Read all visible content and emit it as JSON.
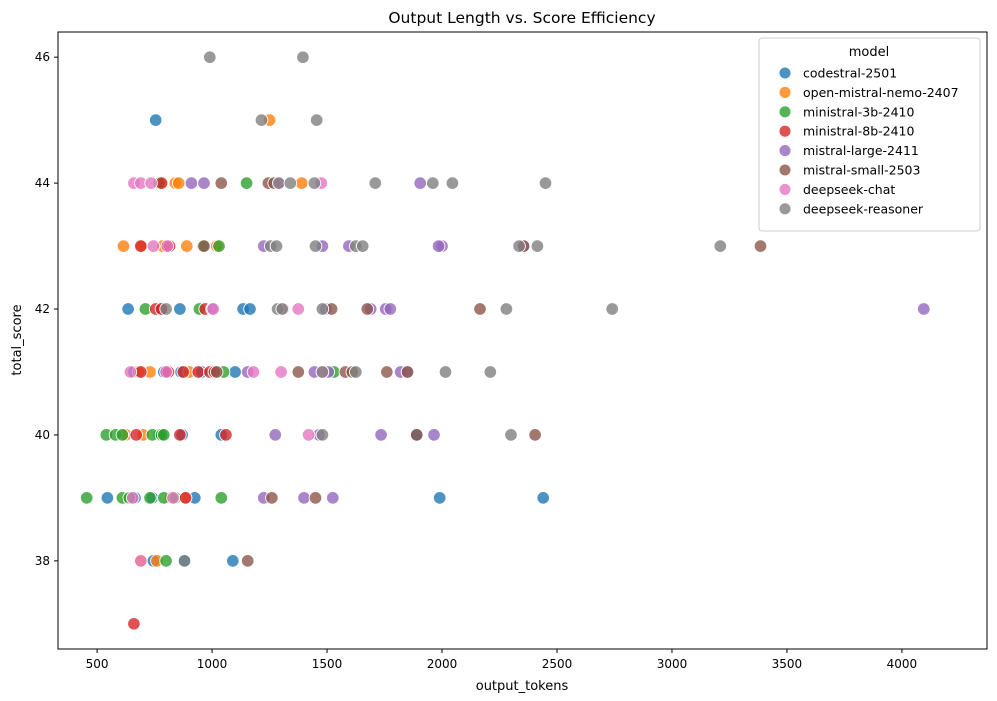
{
  "chart_data": {
    "type": "scatter",
    "title": "Output Length vs. Score Efficiency",
    "xlabel": "output_tokens",
    "ylabel": "total_score",
    "xlim": [
      330,
      4370
    ],
    "ylim": [
      36.6,
      46.4
    ],
    "x_ticks": [
      500,
      1000,
      1500,
      2000,
      2500,
      3000,
      3500,
      4000
    ],
    "y_ticks": [
      38,
      40,
      42,
      44,
      46
    ],
    "grid": false,
    "legend_title": "model",
    "legend_position": "top-right",
    "series": [
      {
        "name": "codestral-2501",
        "color": "#1f77b4",
        "points": [
          [
            755,
            45
          ],
          [
            635,
            42
          ],
          [
            1135,
            42
          ],
          [
            1165,
            42
          ],
          [
            780,
            42
          ],
          [
            860,
            42
          ],
          [
            660,
            41
          ],
          [
            955,
            41
          ],
          [
            1100,
            41
          ],
          [
            790,
            41
          ],
          [
            865,
            41
          ],
          [
            770,
            40
          ],
          [
            870,
            40
          ],
          [
            1040,
            40
          ],
          [
            1890,
            40
          ],
          [
            545,
            39
          ],
          [
            665,
            39
          ],
          [
            740,
            39
          ],
          [
            925,
            39
          ],
          [
            1990,
            39
          ],
          [
            2440,
            39
          ],
          [
            745,
            38
          ],
          [
            880,
            38
          ],
          [
            1090,
            38
          ]
        ]
      },
      {
        "name": "open-mistral-nemo-2407",
        "color": "#ff7f0e",
        "points": [
          [
            1250,
            45
          ],
          [
            780,
            44
          ],
          [
            840,
            44
          ],
          [
            855,
            44
          ],
          [
            1390,
            44
          ],
          [
            615,
            43
          ],
          [
            695,
            43
          ],
          [
            785,
            43
          ],
          [
            890,
            43
          ],
          [
            1020,
            43
          ],
          [
            730,
            41
          ],
          [
            900,
            41
          ],
          [
            680,
            41
          ],
          [
            625,
            40
          ],
          [
            700,
            40
          ],
          [
            820,
            39
          ],
          [
            880,
            39
          ],
          [
            690,
            38
          ],
          [
            760,
            38
          ]
        ]
      },
      {
        "name": "ministral-3b-2410",
        "color": "#2ca02c",
        "points": [
          [
            770,
            44
          ],
          [
            1150,
            44
          ],
          [
            960,
            43
          ],
          [
            1030,
            43
          ],
          [
            710,
            42
          ],
          [
            945,
            42
          ],
          [
            540,
            40
          ],
          [
            580,
            40
          ],
          [
            610,
            40
          ],
          [
            740,
            40
          ],
          [
            780,
            40
          ],
          [
            790,
            40
          ],
          [
            1050,
            41
          ],
          [
            1530,
            41
          ],
          [
            455,
            39
          ],
          [
            610,
            39
          ],
          [
            640,
            39
          ],
          [
            730,
            39
          ],
          [
            790,
            39
          ],
          [
            840,
            39
          ],
          [
            1040,
            39
          ],
          [
            800,
            38
          ]
        ]
      },
      {
        "name": "ministral-8b-2410",
        "color": "#d62728",
        "points": [
          [
            780,
            44
          ],
          [
            690,
            43
          ],
          [
            815,
            43
          ],
          [
            755,
            42
          ],
          [
            780,
            42
          ],
          [
            970,
            42
          ],
          [
            690,
            41
          ],
          [
            810,
            41
          ],
          [
            940,
            41
          ],
          [
            990,
            41
          ],
          [
            1010,
            41
          ],
          [
            875,
            41
          ],
          [
            670,
            40
          ],
          [
            860,
            40
          ],
          [
            1060,
            40
          ],
          [
            885,
            39
          ],
          [
            660,
            37
          ]
        ]
      },
      {
        "name": "mistral-large-2411",
        "color": "#9467bd",
        "points": [
          [
            910,
            44
          ],
          [
            965,
            44
          ],
          [
            1905,
            44
          ],
          [
            1225,
            43
          ],
          [
            1480,
            43
          ],
          [
            1595,
            43
          ],
          [
            2000,
            43
          ],
          [
            1985,
            43
          ],
          [
            2355,
            43
          ],
          [
            1755,
            42
          ],
          [
            1775,
            42
          ],
          [
            1690,
            42
          ],
          [
            1495,
            42
          ],
          [
            1000,
            42
          ],
          [
            4095,
            42
          ],
          [
            1155,
            41
          ],
          [
            1445,
            41
          ],
          [
            1505,
            41
          ],
          [
            1820,
            41
          ],
          [
            1850,
            41
          ],
          [
            1275,
            40
          ],
          [
            1465,
            40
          ],
          [
            1735,
            40
          ],
          [
            1965,
            40
          ],
          [
            1225,
            39
          ],
          [
            1400,
            39
          ],
          [
            1525,
            39
          ]
        ]
      },
      {
        "name": "mistral-small-2503",
        "color": "#8c564b",
        "points": [
          [
            1040,
            44
          ],
          [
            1245,
            44
          ],
          [
            1270,
            44
          ],
          [
            965,
            43
          ],
          [
            2355,
            43
          ],
          [
            3385,
            43
          ],
          [
            1520,
            42
          ],
          [
            1675,
            42
          ],
          [
            2165,
            42
          ],
          [
            1020,
            41
          ],
          [
            1375,
            41
          ],
          [
            1580,
            41
          ],
          [
            1610,
            41
          ],
          [
            1760,
            41
          ],
          [
            1850,
            41
          ],
          [
            1890,
            40
          ],
          [
            2405,
            40
          ],
          [
            1260,
            39
          ],
          [
            1450,
            39
          ],
          [
            1155,
            38
          ]
        ]
      },
      {
        "name": "deepseek-chat",
        "color": "#e377c2",
        "points": [
          [
            660,
            44
          ],
          [
            690,
            44
          ],
          [
            735,
            44
          ],
          [
            1295,
            44
          ],
          [
            1475,
            44
          ],
          [
            745,
            43
          ],
          [
            805,
            43
          ],
          [
            1005,
            42
          ],
          [
            1310,
            42
          ],
          [
            1375,
            42
          ],
          [
            645,
            41
          ],
          [
            800,
            41
          ],
          [
            1180,
            41
          ],
          [
            1300,
            41
          ],
          [
            1480,
            41
          ],
          [
            1420,
            40
          ],
          [
            655,
            39
          ],
          [
            830,
            39
          ],
          [
            690,
            38
          ]
        ]
      },
      {
        "name": "deepseek-reasoner",
        "color": "#7f7f7f",
        "points": [
          [
            990,
            46
          ],
          [
            1395,
            46
          ],
          [
            1215,
            45
          ],
          [
            1455,
            45
          ],
          [
            1290,
            44
          ],
          [
            1340,
            44
          ],
          [
            1445,
            44
          ],
          [
            1710,
            44
          ],
          [
            1960,
            44
          ],
          [
            2045,
            44
          ],
          [
            2450,
            44
          ],
          [
            1255,
            43
          ],
          [
            1280,
            43
          ],
          [
            1450,
            43
          ],
          [
            1625,
            43
          ],
          [
            1655,
            43
          ],
          [
            2335,
            43
          ],
          [
            2415,
            43
          ],
          [
            3210,
            43
          ],
          [
            800,
            42
          ],
          [
            1285,
            42
          ],
          [
            1305,
            42
          ],
          [
            1480,
            42
          ],
          [
            2280,
            42
          ],
          [
            2740,
            42
          ],
          [
            1480,
            41
          ],
          [
            1625,
            41
          ],
          [
            2015,
            41
          ],
          [
            2210,
            41
          ],
          [
            1480,
            40
          ],
          [
            2300,
            40
          ],
          [
            880,
            38
          ]
        ]
      }
    ]
  }
}
